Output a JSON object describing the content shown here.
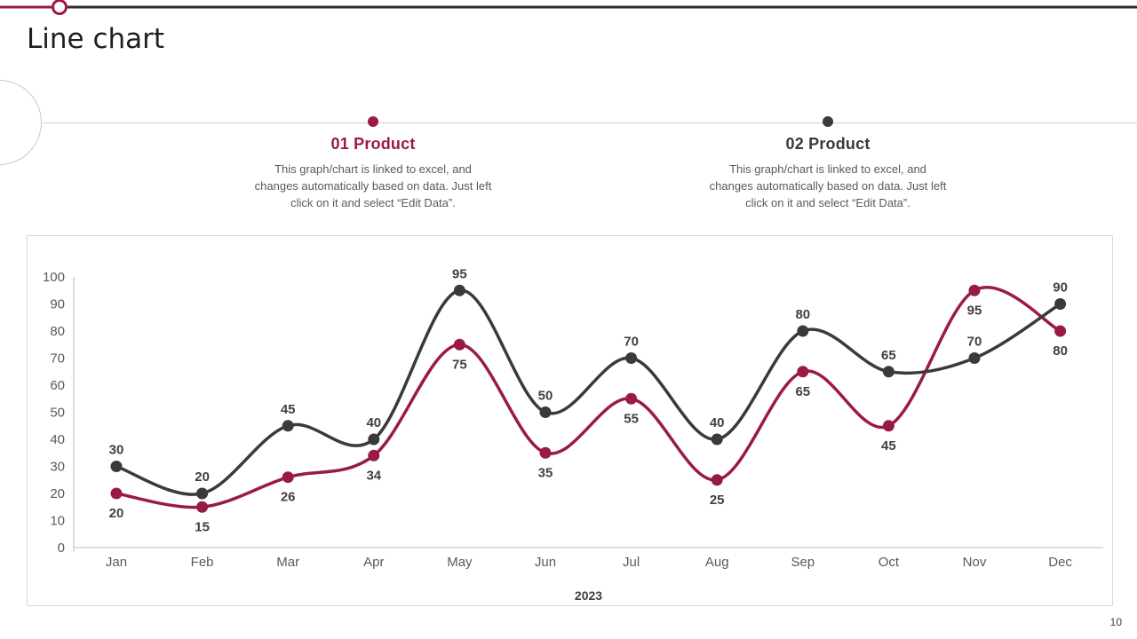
{
  "slide": {
    "title": "Line chart",
    "page_number": "10",
    "accent_color": "#9a1b42",
    "dark_color": "#3a3a3c"
  },
  "legend": [
    {
      "number": "01",
      "label": "Product",
      "color": "#9a1b42",
      "desc_lines": [
        "This graph/chart is linked to excel, and",
        "changes automatically based on data. Just left",
        "click on it and select “Edit Data”."
      ]
    },
    {
      "number": "02",
      "label": "Product",
      "color": "#3a3a3c",
      "desc_lines": [
        "This graph/chart is linked to excel, and",
        "changes automatically based on data. Just left",
        "click on it and select “Edit Data”."
      ]
    }
  ],
  "chart_data": {
    "type": "line",
    "x": [
      "Jan",
      "Feb",
      "Mar",
      "Apr",
      "May",
      "Jun",
      "Jul",
      "Aug",
      "Sep",
      "Oct",
      "Nov",
      "Dec"
    ],
    "series": [
      {
        "name": "01 Product",
        "color": "#9a1b42",
        "values": [
          20,
          15,
          26,
          34,
          75,
          35,
          55,
          25,
          65,
          45,
          95,
          80
        ],
        "label_position": "below"
      },
      {
        "name": "02 Product",
        "color": "#3a3a3c",
        "values": [
          30,
          20,
          45,
          40,
          95,
          50,
          70,
          40,
          80,
          65,
          70,
          90
        ],
        "label_position": "above"
      }
    ],
    "title": "",
    "xlabel": "2023",
    "ylabel": "",
    "ylim": [
      0,
      100
    ],
    "yticks": [
      0,
      10,
      20,
      30,
      40,
      50,
      60,
      70,
      80,
      90,
      100
    ],
    "grid": false,
    "smooth": true,
    "legend_position": "top"
  }
}
